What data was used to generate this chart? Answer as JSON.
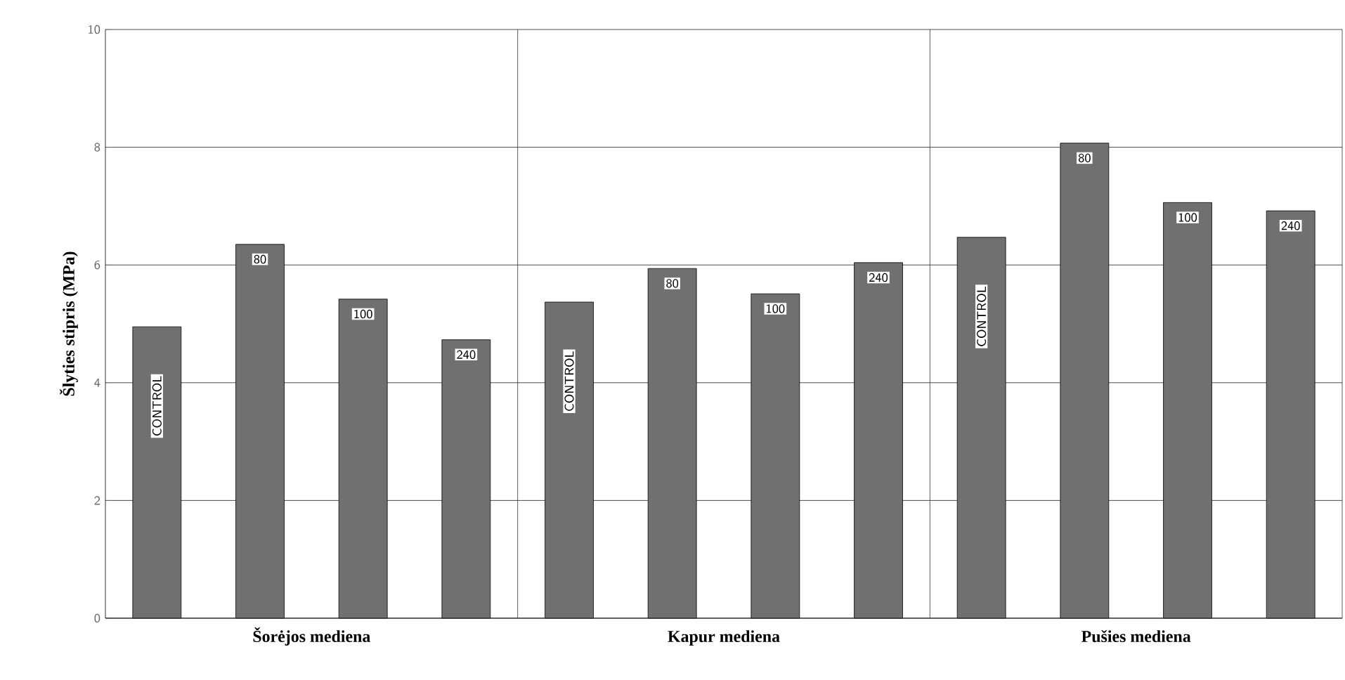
{
  "chart_data": {
    "type": "bar",
    "ylabel": "Šlyties stipris (MPa)",
    "categories": [
      "CONTROL",
      "80",
      "100",
      "240",
      "CONTROL",
      "80",
      "100",
      "240",
      "CONTROL",
      "80",
      "100",
      "240"
    ],
    "values": [
      4.95,
      6.35,
      5.42,
      4.73,
      5.37,
      5.94,
      5.51,
      6.04,
      6.47,
      8.07,
      7.06,
      6.92
    ],
    "color": "#707070",
    "ylim": [
      0,
      10
    ],
    "yticks": [
      0,
      2,
      4,
      6,
      8,
      10
    ],
    "grid": "y",
    "annotations": [
      "Šorėjos mediena",
      "Kapur mediena",
      "Pušies mediena"
    ]
  }
}
